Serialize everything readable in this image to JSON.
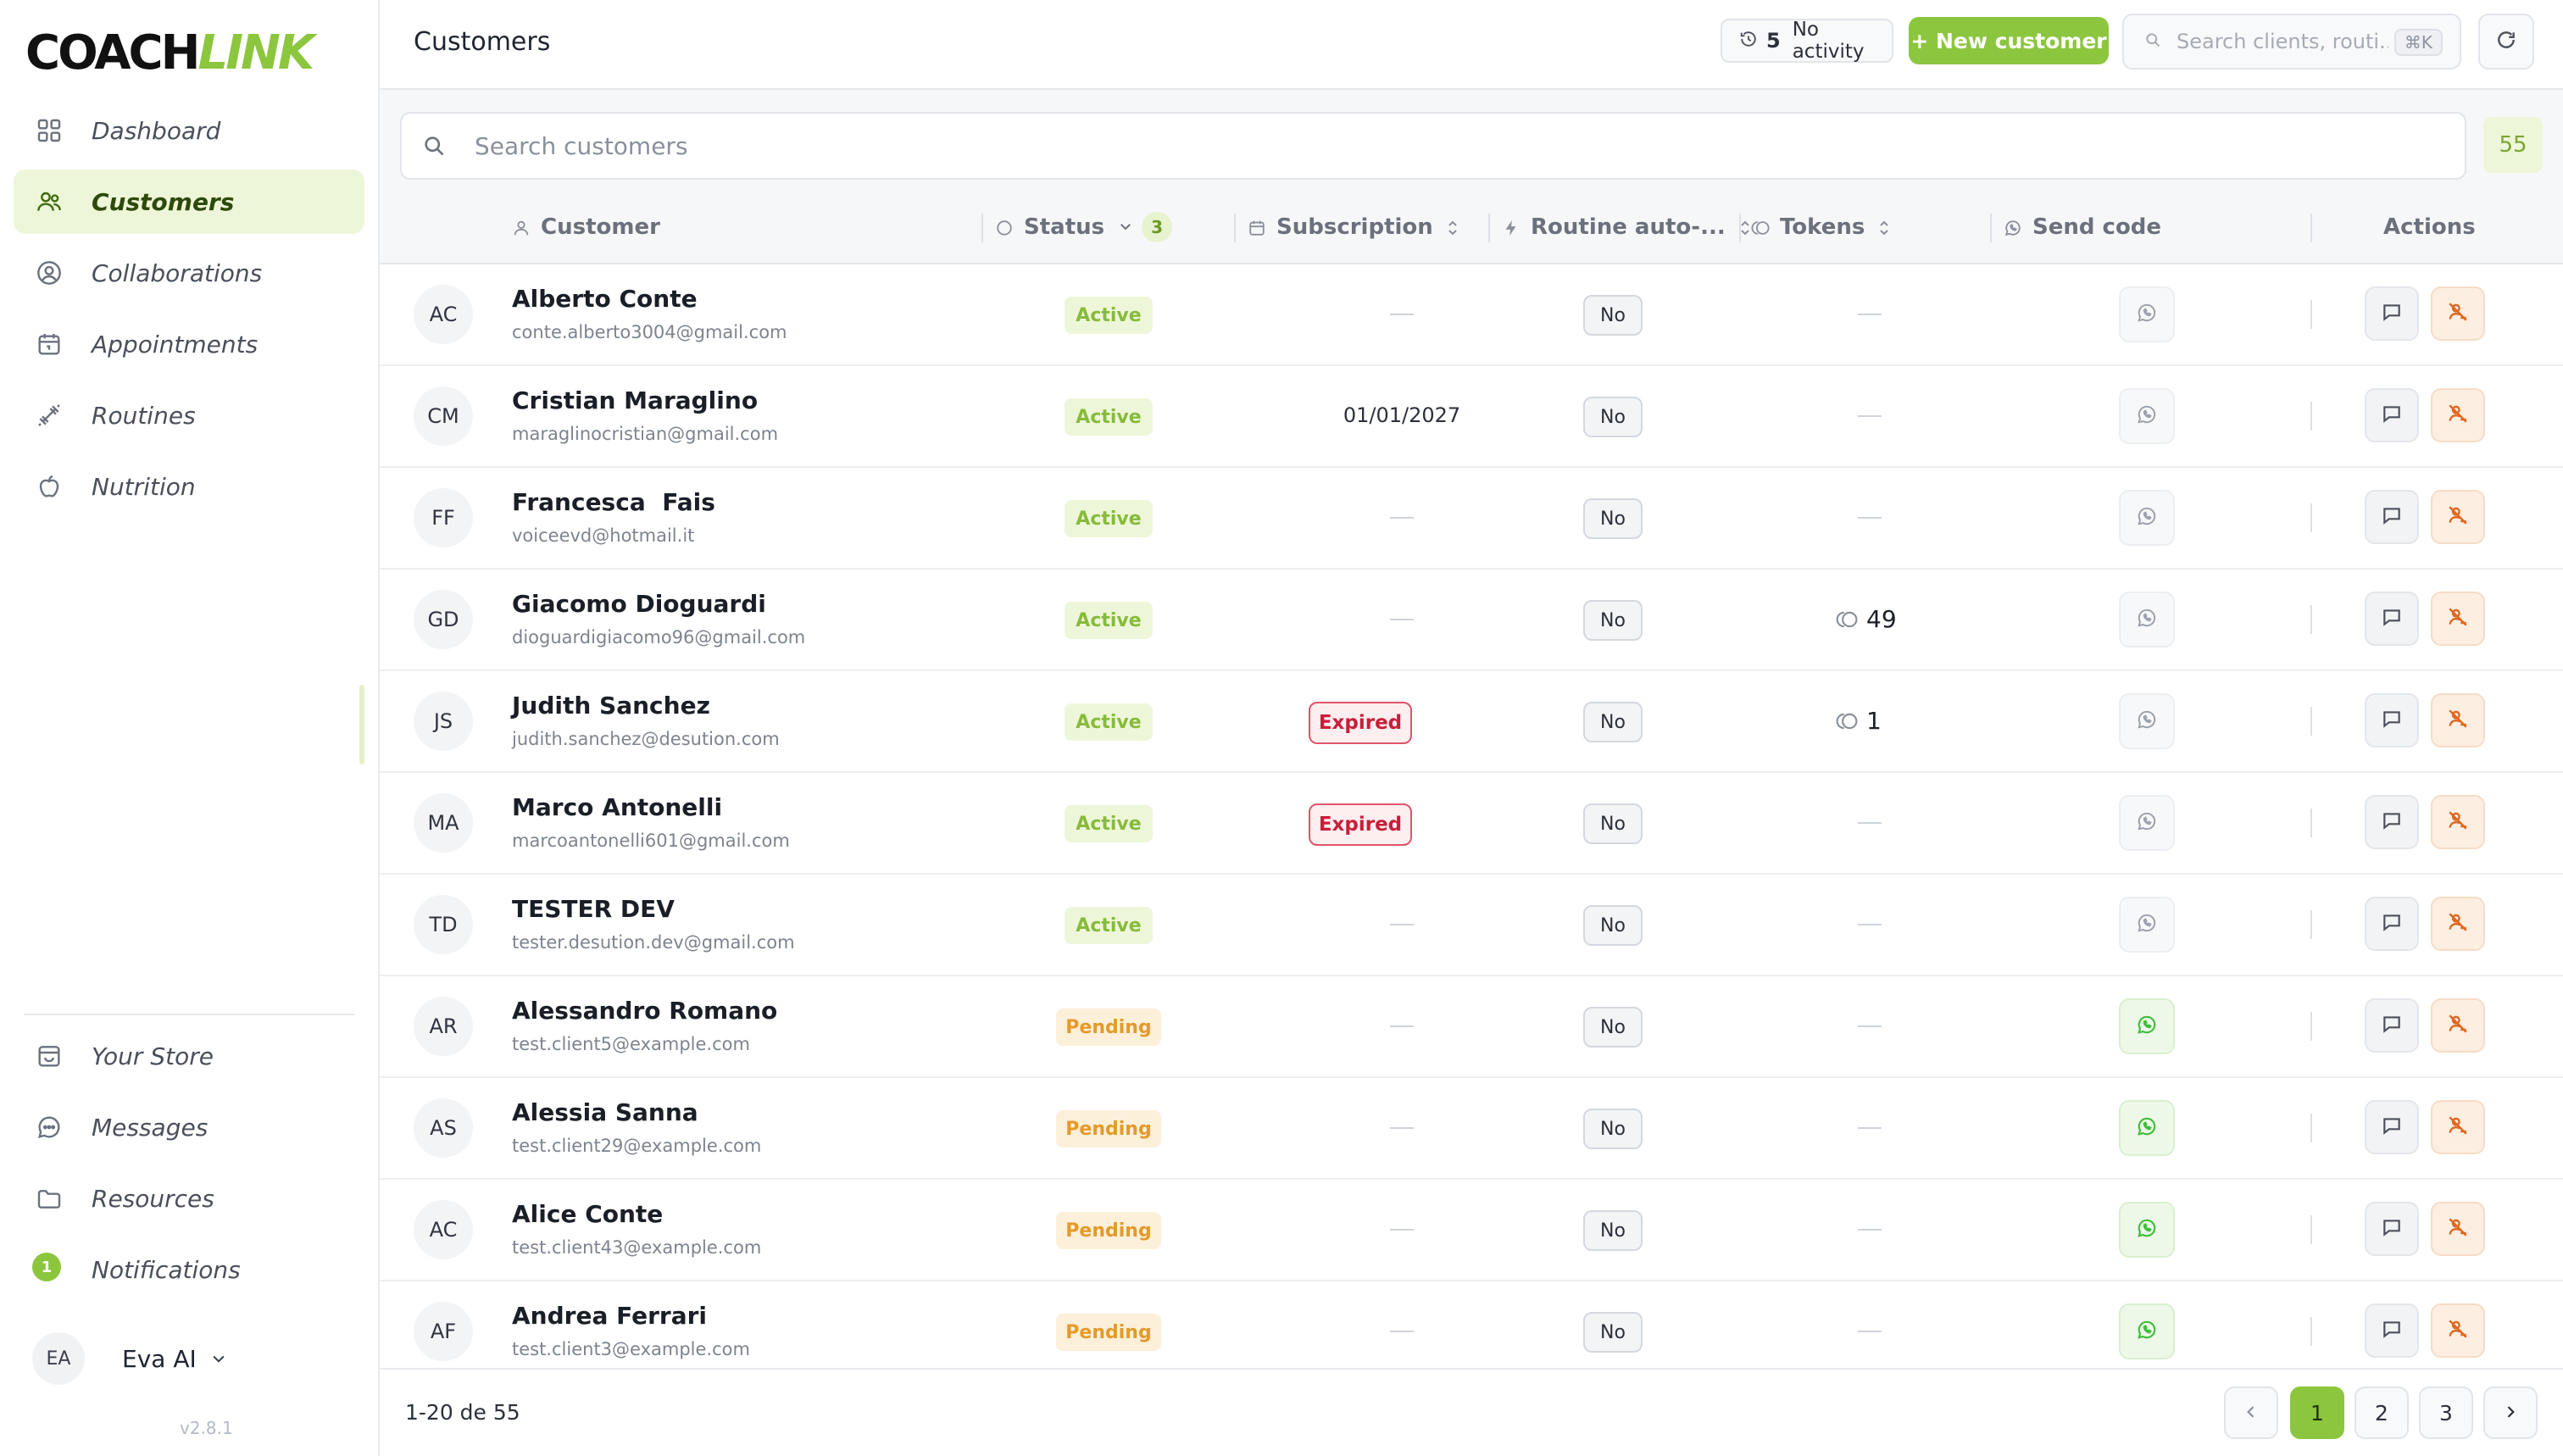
{
  "brand": {
    "part1": "COACH",
    "part2": "LINK",
    "accent": "#8cc63f"
  },
  "sidebar": {
    "nav": [
      {
        "label": "Dashboard",
        "icon": "grid-icon",
        "active": false
      },
      {
        "label": "Customers",
        "icon": "users-icon",
        "active": true
      },
      {
        "label": "Collaborations",
        "icon": "user-circle-icon",
        "active": false
      },
      {
        "label": "Appointments",
        "icon": "calendar-icon",
        "active": false
      },
      {
        "label": "Routines",
        "icon": "dumbbell-icon",
        "active": false
      },
      {
        "label": "Nutrition",
        "icon": "apple-icon",
        "active": false
      }
    ],
    "bottom_nav": [
      {
        "label": "Your Store",
        "icon": "store-icon"
      },
      {
        "label": "Messages",
        "icon": "chat-bubble-icon"
      },
      {
        "label": "Resources",
        "icon": "folder-icon"
      },
      {
        "label": "Notifications",
        "icon": "bell-icon",
        "badge": "1"
      }
    ],
    "user": {
      "initials": "EA",
      "name": "Eva AI"
    },
    "version": "v2.8.1"
  },
  "header": {
    "title": "Customers",
    "activity": {
      "count": "5",
      "label": "No activity"
    },
    "new_button": "+ New customer",
    "search_placeholder": "Search clients, routi...",
    "shortcut": "⌘K"
  },
  "table": {
    "search_placeholder": "Search customers",
    "total_badge": "55",
    "columns": {
      "customer": "Customer",
      "status": "Status",
      "status_filter_count": "3",
      "subscription": "Subscription",
      "routine": "Routine auto-...",
      "tokens": "Tokens",
      "send_code": "Send code",
      "actions": "Actions"
    },
    "no_label": "No",
    "expired_label": "Expired",
    "rows": [
      {
        "initials": "AC",
        "name": "Alberto Conte",
        "email": "conte.alberto3004@gmail.com",
        "status": "Active",
        "subscription": "",
        "expired": false,
        "routine": "No",
        "tokens": "",
        "whatsapp_enabled": false
      },
      {
        "initials": "CM",
        "name": "Cristian Maraglino",
        "email": "maraglinocristian@gmail.com",
        "status": "Active",
        "subscription": "01/01/2027",
        "expired": false,
        "routine": "No",
        "tokens": "",
        "whatsapp_enabled": false
      },
      {
        "initials": "FF",
        "name": "Francesca  Fais",
        "email": "voiceevd@hotmail.it",
        "status": "Active",
        "subscription": "",
        "expired": false,
        "routine": "No",
        "tokens": "",
        "whatsapp_enabled": false
      },
      {
        "initials": "GD",
        "name": "Giacomo Dioguardi",
        "email": "dioguardigiacomo96@gmail.com",
        "status": "Active",
        "subscription": "",
        "expired": false,
        "routine": "No",
        "tokens": "49",
        "whatsapp_enabled": false
      },
      {
        "initials": "JS",
        "name": "Judith Sanchez",
        "email": "judith.sanchez@desution.com",
        "status": "Active",
        "subscription": "",
        "expired": true,
        "routine": "No",
        "tokens": "1",
        "whatsapp_enabled": false
      },
      {
        "initials": "MA",
        "name": "Marco Antonelli",
        "email": "marcoantonelli601@gmail.com",
        "status": "Active",
        "subscription": "",
        "expired": true,
        "routine": "No",
        "tokens": "",
        "whatsapp_enabled": false
      },
      {
        "initials": "TD",
        "name": "TESTER DEV",
        "email": "tester.desution.dev@gmail.com",
        "status": "Active",
        "subscription": "",
        "expired": false,
        "routine": "No",
        "tokens": "",
        "whatsapp_enabled": false
      },
      {
        "initials": "AR",
        "name": "Alessandro Romano",
        "email": "test.client5@example.com",
        "status": "Pending",
        "subscription": "",
        "expired": false,
        "routine": "No",
        "tokens": "",
        "whatsapp_enabled": true
      },
      {
        "initials": "AS",
        "name": "Alessia Sanna",
        "email": "test.client29@example.com",
        "status": "Pending",
        "subscription": "",
        "expired": false,
        "routine": "No",
        "tokens": "",
        "whatsapp_enabled": true
      },
      {
        "initials": "AC",
        "name": "Alice Conte",
        "email": "test.client43@example.com",
        "status": "Pending",
        "subscription": "",
        "expired": false,
        "routine": "No",
        "tokens": "",
        "whatsapp_enabled": true
      },
      {
        "initials": "AF",
        "name": "Andrea Ferrari",
        "email": "test.client3@example.com",
        "status": "Pending",
        "subscription": "",
        "expired": false,
        "routine": "No",
        "tokens": "",
        "whatsapp_enabled": true
      }
    ]
  },
  "pagination": {
    "range": "1-20 de 55",
    "pages": [
      "1",
      "2",
      "3"
    ],
    "current": "1"
  }
}
